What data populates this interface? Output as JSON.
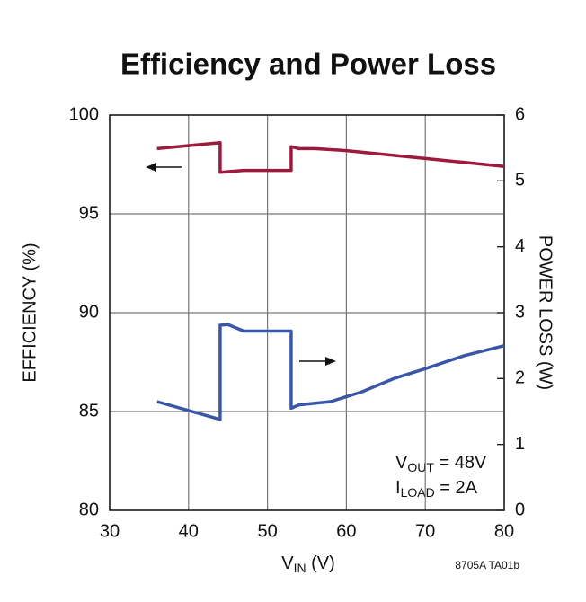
{
  "chart_data": {
    "type": "line",
    "title": "Efficiency and Power Loss",
    "ylabel": "EFFICIENCY (%)",
    "y2label": "POWER LOSS (W)",
    "xlabel": [
      "V",
      "IN",
      " (V)"
    ],
    "annotations": [
      [
        "V",
        "OUT",
        " = 48V"
      ],
      [
        "I",
        "LOAD",
        " = 2A"
      ]
    ],
    "footnote": "8705A TA01b",
    "xlim": [
      30,
      80
    ],
    "xticks": [
      30,
      40,
      50,
      60,
      70,
      80
    ],
    "ylim": [
      80,
      100
    ],
    "yticks": [
      80,
      85,
      90,
      95,
      100
    ],
    "y2lim": [
      0,
      6
    ],
    "y2ticks": [
      0,
      1,
      2,
      3,
      4,
      5,
      6
    ],
    "grid": true,
    "series": [
      {
        "name": "Efficiency",
        "color": "#9c1a3e",
        "x": [
          36,
          44,
          44,
          47,
          53,
          53,
          54,
          56,
          60,
          70,
          75,
          80
        ],
        "values": [
          98.3,
          98.6,
          97.1,
          97.2,
          97.2,
          98.4,
          98.3,
          98.3,
          98.2,
          97.8,
          97.6,
          97.4
        ]
      },
      {
        "name": "Power Loss",
        "color": "#3a56a6",
        "axis": "y2",
        "x": [
          36,
          44,
          44,
          45,
          47,
          53,
          53,
          54,
          58,
          62,
          66,
          70,
          75,
          80
        ],
        "values": [
          1.65,
          1.38,
          2.81,
          2.82,
          2.72,
          2.72,
          1.55,
          1.6,
          1.65,
          1.8,
          2.0,
          2.15,
          2.35,
          2.5
        ]
      }
    ]
  }
}
